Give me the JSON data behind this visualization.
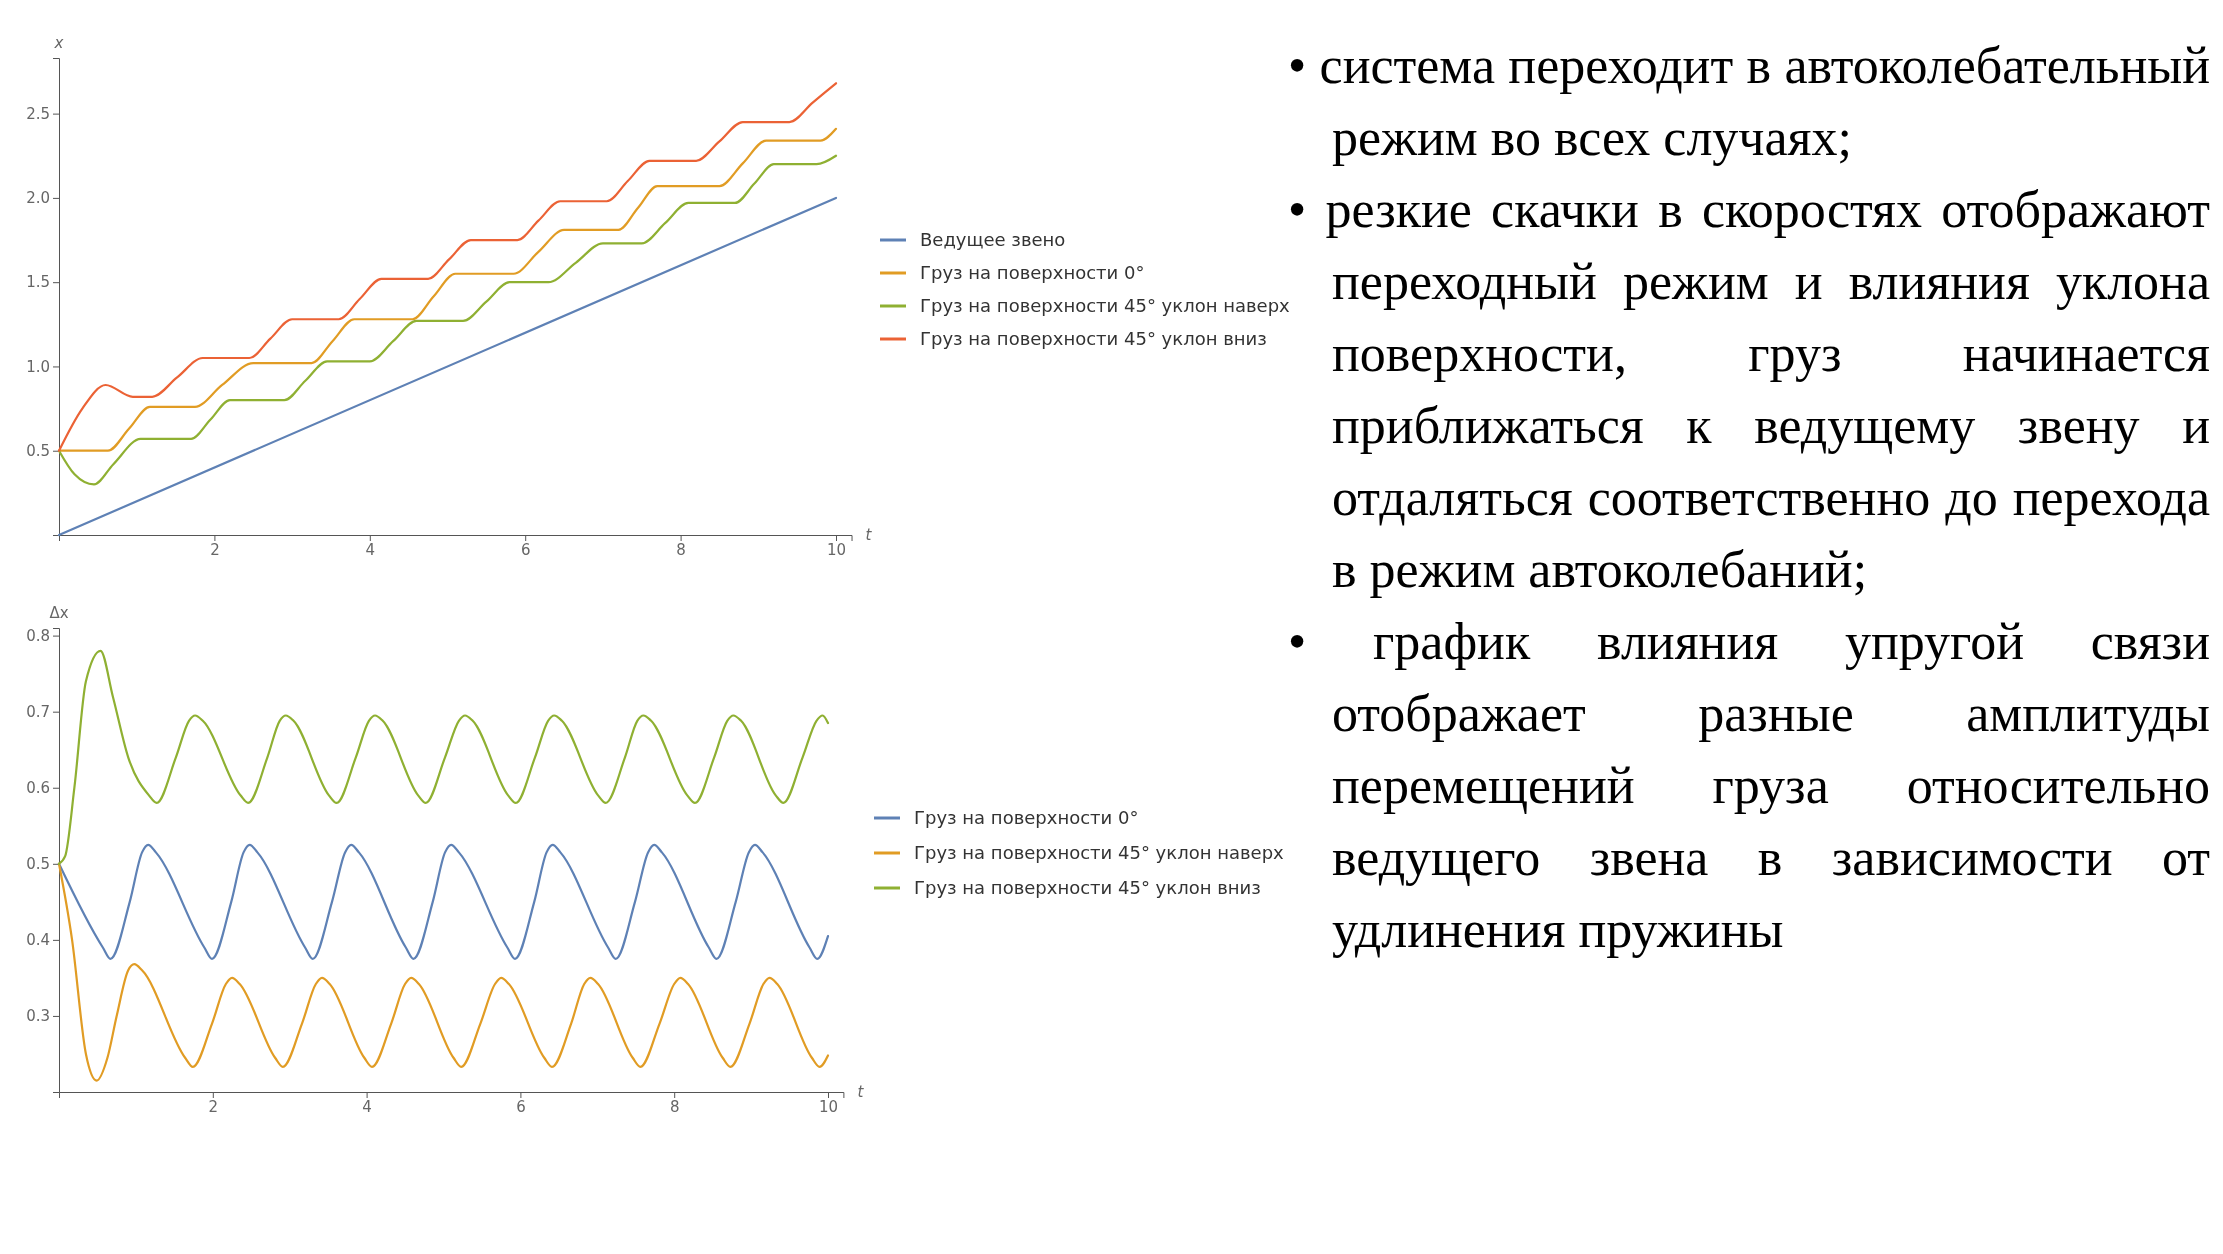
{
  "chart_data": [
    {
      "type": "line",
      "xlabel": "t",
      "ylabel": "x",
      "xlim": [
        0,
        10.2
      ],
      "ylim": [
        0,
        2.83
      ],
      "xticks": [
        2,
        4,
        6,
        8,
        10
      ],
      "yticks": [
        0.5,
        {
          "value": 1,
          "label": "1.0"
        },
        1.5,
        {
          "value": 2,
          "label": "2.0"
        },
        2.5
      ],
      "legend": "right",
      "grid": false,
      "series": [
        {
          "name": "Ведущее звено",
          "color": "#5e81b5",
          "x": [
            0,
            10
          ],
          "values": [
            0,
            2
          ]
        },
        {
          "name": "Груз на поверхности 0°",
          "color": "#e19c24",
          "x": [
            0,
            0.63,
            0.9,
            1.17,
            1.75,
            2.1,
            2.5,
            3.25,
            3.52,
            3.8,
            4.55,
            4.82,
            5.1,
            5.85,
            6.17,
            6.5,
            7.2,
            7.45,
            7.7,
            8.5,
            8.8,
            9.1,
            9.8,
            10
          ],
          "values": [
            0.5,
            0.5,
            0.63,
            0.76,
            0.76,
            0.89,
            1.02,
            1.02,
            1.15,
            1.28,
            1.28,
            1.415,
            1.55,
            1.55,
            1.68,
            1.81,
            1.81,
            1.94,
            2.07,
            2.07,
            2.205,
            2.34,
            2.34,
            2.41
          ]
        },
        {
          "name": "Груз на поверхности 45° уклон наверх",
          "color": "#8fb032",
          "x": [
            0,
            0.2,
            0.45,
            0.7,
            1.05,
            1.7,
            1.95,
            2.2,
            2.9,
            3.17,
            3.45,
            4.0,
            4.3,
            4.6,
            5.2,
            5.5,
            5.8,
            6.3,
            6.65,
            7.0,
            7.5,
            7.8,
            8.1,
            8.7,
            8.95,
            9.2,
            9.75,
            10
          ],
          "values": [
            0.5,
            0.36,
            0.3,
            0.42,
            0.57,
            0.57,
            0.685,
            0.8,
            0.8,
            0.915,
            1.03,
            1.03,
            1.15,
            1.27,
            1.27,
            1.385,
            1.5,
            1.5,
            1.615,
            1.73,
            1.73,
            1.85,
            1.97,
            1.97,
            2.085,
            2.2,
            2.2,
            2.25
          ]
        },
        {
          "name": "Груз на поверхности 45° уклон вниз",
          "color": "#eb6235",
          "x": [
            0,
            0.3,
            0.6,
            0.95,
            1.2,
            1.52,
            1.85,
            2.45,
            2.72,
            3.0,
            3.6,
            3.87,
            4.15,
            4.75,
            5.02,
            5.3,
            5.9,
            6.17,
            6.45,
            7.05,
            7.32,
            7.6,
            8.2,
            8.5,
            8.8,
            9.4,
            9.7,
            10
          ],
          "values": [
            0.5,
            0.75,
            0.89,
            0.82,
            0.82,
            0.935,
            1.05,
            1.05,
            1.165,
            1.28,
            1.28,
            1.4,
            1.52,
            1.52,
            1.635,
            1.75,
            1.75,
            1.865,
            1.98,
            1.98,
            2.1,
            2.22,
            2.22,
            2.335,
            2.45,
            2.45,
            2.565,
            2.68
          ]
        }
      ]
    },
    {
      "type": "line",
      "xlabel": "t",
      "ylabel": "Δx",
      "xlim": [
        0,
        10.2
      ],
      "ylim": [
        0.2,
        0.81
      ],
      "xticks": [
        2,
        4,
        6,
        8,
        10
      ],
      "yticks": [
        0.3,
        0.4,
        0.5,
        0.6,
        0.7,
        0.8
      ],
      "legend": "right",
      "grid": false,
      "series": [
        {
          "name": "Груз на поверхности 0°",
          "color": "#5e81b5",
          "x": [
            0,
            0.57,
            0.67,
            0.92,
            1.08,
            1.16,
            1.26,
            1.89,
            1.99,
            2.24,
            2.4,
            2.48,
            2.58,
            3.2,
            3.3,
            3.55,
            3.72,
            3.8,
            3.9,
            4.51,
            4.61,
            4.86,
            5.02,
            5.1,
            5.2,
            5.83,
            5.93,
            6.18,
            6.34,
            6.42,
            6.52,
            7.14,
            7.24,
            7.49,
            7.66,
            7.74,
            7.84,
            8.45,
            8.55,
            8.8,
            8.97,
            9.05,
            9.15,
            9.76,
            9.86,
            10
          ],
          "values": [
            0.5,
            0.39,
            0.375,
            0.45,
            0.515,
            0.525,
            0.515,
            0.39,
            0.375,
            0.45,
            0.515,
            0.525,
            0.515,
            0.39,
            0.375,
            0.45,
            0.515,
            0.525,
            0.515,
            0.39,
            0.375,
            0.45,
            0.515,
            0.525,
            0.515,
            0.39,
            0.375,
            0.45,
            0.515,
            0.525,
            0.515,
            0.39,
            0.375,
            0.45,
            0.515,
            0.525,
            0.515,
            0.39,
            0.375,
            0.45,
            0.515,
            0.525,
            0.515,
            0.39,
            0.375,
            0.405
          ]
        },
        {
          "name": "Груз на поверхности 45° уклон наверх",
          "color": "#e19c24",
          "x": [
            0,
            0.17,
            0.35,
            0.49,
            0.63,
            0.75,
            0.9,
            0.98,
            1.08,
            1.64,
            1.74,
            1.99,
            2.17,
            2.25,
            2.35,
            2.81,
            2.91,
            3.16,
            3.34,
            3.42,
            3.52,
            3.97,
            4.07,
            4.32,
            4.5,
            4.58,
            4.68,
            5.13,
            5.23,
            5.48,
            5.67,
            5.75,
            5.85,
            6.31,
            6.41,
            6.66,
            6.83,
            6.91,
            7.01,
            7.46,
            7.56,
            7.81,
            8.0,
            8.08,
            8.18,
            8.63,
            8.73,
            8.98,
            9.16,
            9.24,
            9.34,
            9.79,
            9.89,
            10
          ],
          "values": [
            0.5,
            0.4,
            0.25,
            0.215,
            0.245,
            0.3,
            0.36,
            0.368,
            0.36,
            0.245,
            0.233,
            0.29,
            0.342,
            0.35,
            0.342,
            0.245,
            0.233,
            0.29,
            0.342,
            0.35,
            0.342,
            0.245,
            0.233,
            0.29,
            0.342,
            0.35,
            0.342,
            0.245,
            0.233,
            0.29,
            0.342,
            0.35,
            0.342,
            0.245,
            0.233,
            0.29,
            0.342,
            0.35,
            0.342,
            0.245,
            0.233,
            0.29,
            0.342,
            0.35,
            0.342,
            0.245,
            0.233,
            0.29,
            0.342,
            0.35,
            0.342,
            0.245,
            0.233,
            0.248
          ]
        },
        {
          "name": "Груз на поверхности 45° уклон вниз",
          "color": "#8fb032",
          "x": [
            0,
            0.08,
            0.2,
            0.35,
            0.54,
            0.7,
            0.9,
            1.17,
            1.27,
            1.52,
            1.69,
            1.77,
            1.87,
            2.36,
            2.46,
            2.71,
            2.87,
            2.95,
            3.05,
            3.51,
            3.61,
            3.86,
            4.03,
            4.11,
            4.21,
            4.67,
            4.77,
            5.02,
            5.2,
            5.28,
            5.38,
            5.84,
            5.94,
            6.19,
            6.36,
            6.44,
            6.54,
            7.01,
            7.11,
            7.36,
            7.52,
            7.6,
            7.7,
            8.17,
            8.27,
            8.52,
            8.69,
            8.77,
            8.87,
            9.32,
            9.42,
            9.67,
            9.85,
            9.93,
            10
          ],
          "values": [
            0.5,
            0.51,
            0.6,
            0.74,
            0.78,
            0.72,
            0.64,
            0.59,
            0.58,
            0.64,
            0.688,
            0.695,
            0.688,
            0.59,
            0.58,
            0.64,
            0.688,
            0.695,
            0.688,
            0.59,
            0.58,
            0.64,
            0.688,
            0.695,
            0.688,
            0.59,
            0.58,
            0.64,
            0.688,
            0.695,
            0.688,
            0.59,
            0.58,
            0.64,
            0.688,
            0.695,
            0.688,
            0.59,
            0.58,
            0.64,
            0.688,
            0.695,
            0.688,
            0.59,
            0.58,
            0.64,
            0.688,
            0.695,
            0.688,
            0.59,
            0.58,
            0.64,
            0.688,
            0.695,
            0.685
          ]
        }
      ]
    },
    {
      "type": "other",
      "annotations": [
        "• система переходит в автоколебательный режим во всех случаях;",
        "• резкие скачки в скоростях отображают переходный режим и влияния уклона поверхности, груз начинается приближаться к ведущему звену и отдаляться соответственно до перехода в режим автоколебаний;",
        "• график влияния упругой связи отображает разные амплитуды перемещений груза относительно ведущего звена в зависимости от удлинения пружины"
      ]
    }
  ]
}
